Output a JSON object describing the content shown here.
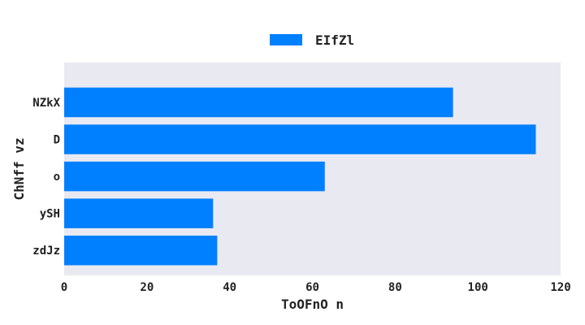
{
  "chart_data": {
    "type": "bar",
    "orientation": "horizontal",
    "categories": [
      "NZkX",
      "D",
      "o",
      "ySH",
      "zdJz"
    ],
    "series": [
      {
        "name": "EIfZl",
        "values": [
          94,
          114,
          63,
          36,
          37
        ]
      }
    ],
    "xlabel": "ToOFnO n",
    "ylabel": "ChNff vz",
    "xlim": [
      0,
      120
    ],
    "xticks": [
      0,
      20,
      40,
      60,
      80,
      100,
      120
    ],
    "grid": false,
    "legend_position": "top-center",
    "colors": {
      "bar": "#0080ff",
      "plot_background": "#e9e9f2"
    }
  }
}
